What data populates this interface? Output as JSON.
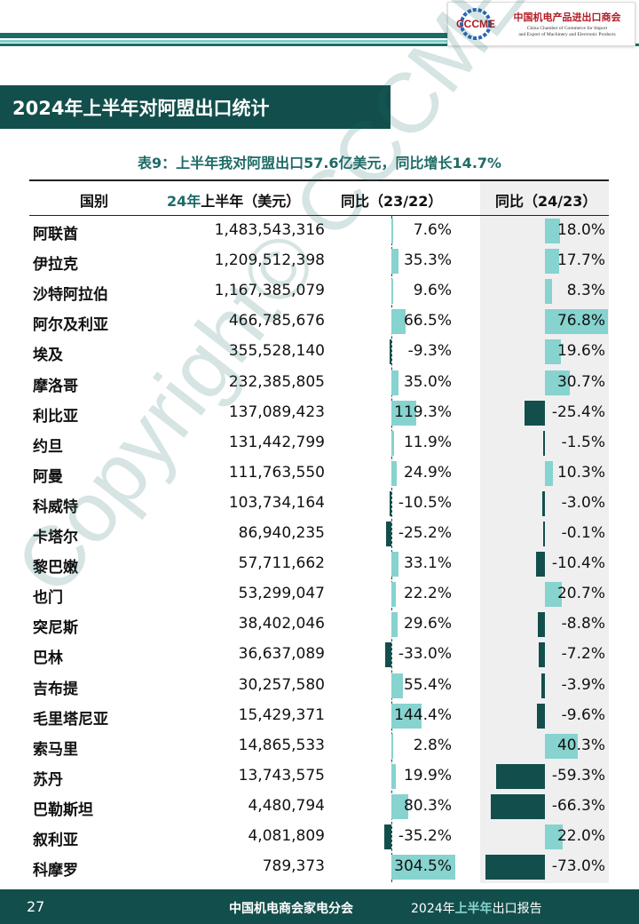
{
  "logo": {
    "mark": "CCCME",
    "cn": "中国机电产品进出口商会",
    "en_line1": "China Chamber of Commerce for Import",
    "en_line2": "and Export of Machinery and Electronic Products"
  },
  "section_title": "2024年上半年对阿盟出口统计",
  "table": {
    "caption": "表9：上半年我对阿盟出口57.6亿美元，同比增长14.7%",
    "headers": {
      "country": "国别",
      "value_accent": "24年",
      "value_rest": "上半年（美元）",
      "yoy_2322": "同比（23/22）",
      "yoy_2423": "同比（24/23）"
    },
    "rows": [
      {
        "country": "阿联酋",
        "value": "1,483,543,316",
        "yoy1": "7.6%",
        "yoy2": "18.0%",
        "yoy1_num": 7.6,
        "yoy2_num": 18.0
      },
      {
        "country": "伊拉克",
        "value": "1,209,512,398",
        "yoy1": "35.3%",
        "yoy2": "17.7%",
        "yoy1_num": 35.3,
        "yoy2_num": 17.7
      },
      {
        "country": "沙特阿拉伯",
        "value": "1,167,385,079",
        "yoy1": "9.6%",
        "yoy2": "8.3%",
        "yoy1_num": 9.6,
        "yoy2_num": 8.3
      },
      {
        "country": "阿尔及利亚",
        "value": "466,785,676",
        "yoy1": "66.5%",
        "yoy2": "76.8%",
        "yoy1_num": 66.5,
        "yoy2_num": 76.8
      },
      {
        "country": "埃及",
        "value": "355,528,140",
        "yoy1": "-9.3%",
        "yoy2": "19.6%",
        "yoy1_num": -9.3,
        "yoy2_num": 19.6
      },
      {
        "country": "摩洛哥",
        "value": "232,385,805",
        "yoy1": "35.0%",
        "yoy2": "30.7%",
        "yoy1_num": 35.0,
        "yoy2_num": 30.7
      },
      {
        "country": "利比亚",
        "value": "137,089,423",
        "yoy1": "119.3%",
        "yoy2": "-25.4%",
        "yoy1_num": 119.3,
        "yoy2_num": -25.4
      },
      {
        "country": "约旦",
        "value": "131,442,799",
        "yoy1": "11.9%",
        "yoy2": "-1.5%",
        "yoy1_num": 11.9,
        "yoy2_num": -1.5
      },
      {
        "country": "阿曼",
        "value": "111,763,550",
        "yoy1": "24.9%",
        "yoy2": "10.3%",
        "yoy1_num": 24.9,
        "yoy2_num": 10.3
      },
      {
        "country": "科威特",
        "value": "103,734,164",
        "yoy1": "-10.5%",
        "yoy2": "-3.0%",
        "yoy1_num": -10.5,
        "yoy2_num": -3.0
      },
      {
        "country": "卡塔尔",
        "value": "86,940,235",
        "yoy1": "-25.2%",
        "yoy2": "-0.1%",
        "yoy1_num": -25.2,
        "yoy2_num": -0.1
      },
      {
        "country": "黎巴嫩",
        "value": "57,711,662",
        "yoy1": "33.1%",
        "yoy2": "-10.4%",
        "yoy1_num": 33.1,
        "yoy2_num": -10.4
      },
      {
        "country": "也门",
        "value": "53,299,047",
        "yoy1": "22.2%",
        "yoy2": "20.7%",
        "yoy1_num": 22.2,
        "yoy2_num": 20.7
      },
      {
        "country": "突尼斯",
        "value": "38,402,046",
        "yoy1": "29.6%",
        "yoy2": "-8.8%",
        "yoy1_num": 29.6,
        "yoy2_num": -8.8
      },
      {
        "country": "巴林",
        "value": "36,637,089",
        "yoy1": "-33.0%",
        "yoy2": "-7.2%",
        "yoy1_num": -33.0,
        "yoy2_num": -7.2
      },
      {
        "country": "吉布提",
        "value": "30,257,580",
        "yoy1": "55.4%",
        "yoy2": "-3.9%",
        "yoy1_num": 55.4,
        "yoy2_num": -3.9
      },
      {
        "country": "毛里塔尼亚",
        "value": "15,429,371",
        "yoy1": "144.4%",
        "yoy2": "-9.6%",
        "yoy1_num": 144.4,
        "yoy2_num": -9.6
      },
      {
        "country": "索马里",
        "value": "14,865,533",
        "yoy1": "2.8%",
        "yoy2": "40.3%",
        "yoy1_num": 2.8,
        "yoy2_num": 40.3
      },
      {
        "country": "苏丹",
        "value": "13,743,575",
        "yoy1": "19.9%",
        "yoy2": "-59.3%",
        "yoy1_num": 19.9,
        "yoy2_num": -59.3
      },
      {
        "country": "巴勒斯坦",
        "value": "4,480,794",
        "yoy1": "80.3%",
        "yoy2": "-66.3%",
        "yoy1_num": 80.3,
        "yoy2_num": -66.3
      },
      {
        "country": "叙利亚",
        "value": "4,081,809",
        "yoy1": "-35.2%",
        "yoy2": "22.0%",
        "yoy1_num": -35.2,
        "yoy2_num": 22.0
      },
      {
        "country": "科摩罗",
        "value": "789,373",
        "yoy1": "304.5%",
        "yoy2": "-73.0%",
        "yoy1_num": 304.5,
        "yoy2_num": -73.0
      }
    ]
  },
  "watermark": "Copyright© CCCME",
  "colors": {
    "dark_teal": "#124f4c",
    "light_teal": "#86d3cf",
    "accent": "#1e6b66"
  },
  "footer": {
    "page_number": "27",
    "org": "中国机电商会家电分会",
    "report_prefix": "2024年",
    "report_highlight": "上半年",
    "report_suffix": "出口报告"
  }
}
